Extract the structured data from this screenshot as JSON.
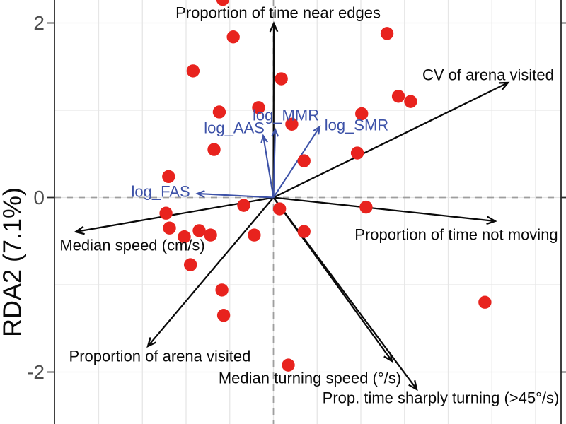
{
  "chart_data": {
    "type": "scatter",
    "subtype": "rda-biplot",
    "title": "",
    "xlabel": "",
    "ylabel": "RDA2 (7.1%)",
    "xlim": [
      -2.5,
      3.35
    ],
    "ylim": [
      -2.6,
      2.27
    ],
    "grid": true,
    "legend": "none",
    "colors": {
      "point": "#e8231e",
      "trait_arrow": "#0a0a0a",
      "predictor_arrow": "#3d52a8",
      "gridline": "#e6e6e6",
      "zero_line": "#9e9e9e",
      "panel_border": "#2b2b2b",
      "label_text": "#0a0a0a",
      "tick_text": "#4d4d4d",
      "background": "#ffffff"
    },
    "y_axis": {
      "title": "RDA2 (7.1%)",
      "ticks": [
        {
          "label": "2",
          "value": 2
        },
        {
          "label": "0",
          "value": 0
        },
        {
          "label": "-2",
          "value": -2
        }
      ],
      "minor_gridlines": [
        1,
        -1
      ]
    },
    "x_axis": {
      "tick_labels_visible": false,
      "gridlines": [
        -2,
        -1.5,
        -1,
        -0.5,
        0,
        0.5,
        1,
        1.5,
        2,
        2.5,
        3
      ]
    },
    "zero_lines": {
      "x": 0,
      "y": 0,
      "style": "dashed"
    },
    "points": [
      [
        -0.58,
        2.27
      ],
      [
        -0.46,
        1.84
      ],
      [
        1.3,
        1.88
      ],
      [
        -0.92,
        1.45
      ],
      [
        0.09,
        1.36
      ],
      [
        1.43,
        1.16
      ],
      [
        1.57,
        1.1
      ],
      [
        -0.62,
        0.98
      ],
      [
        -0.17,
        1.03
      ],
      [
        0.21,
        0.84
      ],
      [
        1.01,
        0.96
      ],
      [
        -0.68,
        0.55
      ],
      [
        0.35,
        0.42
      ],
      [
        0.96,
        0.51
      ],
      [
        -1.2,
        0.24
      ],
      [
        -0.34,
        -0.09
      ],
      [
        0.07,
        -0.13
      ],
      [
        1.06,
        -0.11
      ],
      [
        -1.23,
        -0.18
      ],
      [
        -1.19,
        -0.35
      ],
      [
        -1.02,
        -0.45
      ],
      [
        -0.85,
        -0.38
      ],
      [
        -0.72,
        -0.43
      ],
      [
        -0.22,
        -0.43
      ],
      [
        -0.95,
        -0.77
      ],
      [
        -0.59,
        -1.06
      ],
      [
        -0.57,
        -1.35
      ],
      [
        0.35,
        -0.39
      ],
      [
        0.17,
        -1.92
      ],
      [
        2.42,
        -1.2
      ]
    ],
    "arrows": [
      {
        "label": "Proportion of time near edges",
        "tip": [
          0.004,
          1.996
        ],
        "label_pos": [
          0.053,
          2.117
        ]
      },
      {
        "label": "CV of arena visited",
        "tip": [
          2.684,
          1.316
        ],
        "label_pos": [
          2.457,
          1.405
        ]
      },
      {
        "label": "Proportion of time not moving",
        "tip": [
          2.538,
          -0.271
        ],
        "label_pos": [
          2.093,
          -0.425
        ]
      },
      {
        "label": "Median speed (cm/s)",
        "tip": [
          -2.263,
          -0.393
        ],
        "label_pos": [
          -1.615,
          -0.547
        ]
      },
      {
        "label": "Proportion of arena visited",
        "tip": [
          -1.437,
          -1.704
        ],
        "label_pos": [
          -1.3,
          -1.818
        ]
      },
      {
        "label": "Median turning speed (°/s)",
        "tip": [
          1.356,
          -1.874
        ],
        "label_pos": [
          0.417,
          -2.069
        ]
      },
      {
        "label": "Prop. time sharply turning (>45°/s)",
        "tip": [
          1.64,
          -2.198
        ],
        "label_pos": [
          1.915,
          -2.296
        ]
      }
    ],
    "predictors": [
      {
        "label": "log_MMR",
        "tip": [
          0.02,
          0.781
        ],
        "label_pos": [
          0.142,
          0.943
        ]
      },
      {
        "label": "log_AAS",
        "tip": [
          -0.117,
          0.708
        ],
        "label_pos": [
          -0.449,
          0.798
        ]
      },
      {
        "label": "log_SMR",
        "tip": [
          0.53,
          0.81
        ],
        "label_pos": [
          0.951,
          0.83
        ]
      },
      {
        "label": "log_FAS",
        "tip": [
          -0.87,
          0.045
        ],
        "label_pos": [
          -1.291,
          0.069
        ]
      }
    ]
  }
}
